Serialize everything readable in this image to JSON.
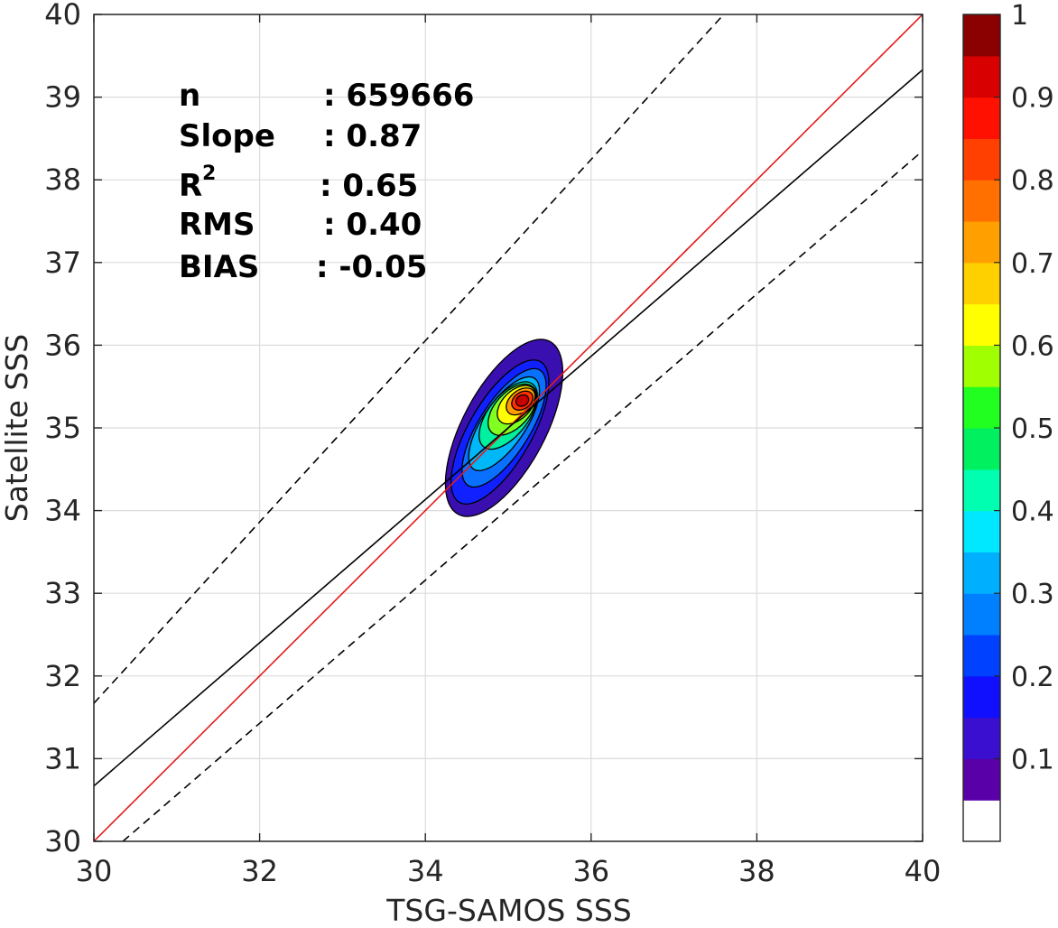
{
  "chart_data": {
    "type": "contour-density-scatter",
    "xlabel": "TSG-SAMOS SSS",
    "ylabel": "Satellite SSS",
    "xlim": [
      30,
      40
    ],
    "ylim": [
      30,
      40
    ],
    "xticks": [
      30,
      32,
      34,
      36,
      38,
      40
    ],
    "yticks": [
      30,
      31,
      32,
      33,
      34,
      35,
      36,
      37,
      38,
      39,
      40
    ],
    "grid": true,
    "stats": [
      {
        "label": "n",
        "value": ": 659666",
        "superscript": ""
      },
      {
        "label": "Slope",
        "value": ": 0.87",
        "superscript": ""
      },
      {
        "label": "R",
        "value": ": 0.65",
        "superscript": "2"
      },
      {
        "label": "RMS",
        "value": ": 0.40",
        "superscript": ""
      },
      {
        "label": "BIAS",
        "value": ": -0.05",
        "superscript": ""
      }
    ],
    "lines": [
      {
        "role": "one-to-one",
        "color": "#e41a1c",
        "style": "solid",
        "points": [
          [
            30,
            30
          ],
          [
            40,
            40
          ]
        ]
      },
      {
        "role": "regression",
        "color": "#000000",
        "style": "solid",
        "points": [
          [
            30,
            30.67
          ],
          [
            40,
            39.33
          ]
        ]
      },
      {
        "role": "upper-bound",
        "color": "#000000",
        "style": "dashed",
        "points": [
          [
            30,
            31.67
          ],
          [
            37.6,
            40
          ]
        ]
      },
      {
        "role": "lower-bound",
        "color": "#000000",
        "style": "dashed",
        "points": [
          [
            30.35,
            30
          ],
          [
            40,
            38.35
          ]
        ]
      }
    ],
    "density_contours": [
      {
        "level": 0.05,
        "color": "#3a0fb0",
        "center": [
          34.95,
          35.0
        ],
        "rx": 1.18,
        "ry": 0.5,
        "angle": 62
      },
      {
        "level": 0.15,
        "color": "#1020ff",
        "center": [
          34.9,
          34.95
        ],
        "rx": 0.98,
        "ry": 0.38,
        "angle": 60
      },
      {
        "level": 0.25,
        "color": "#0a70ff",
        "center": [
          34.95,
          35.0
        ],
        "rx": 0.82,
        "ry": 0.31,
        "angle": 58
      },
      {
        "level": 0.35,
        "color": "#00b8f8",
        "center": [
          34.95,
          35.05
        ],
        "rx": 0.66,
        "ry": 0.26,
        "angle": 56
      },
      {
        "level": 0.45,
        "color": "#00f0a0",
        "center": [
          35.0,
          35.15
        ],
        "rx": 0.48,
        "ry": 0.24,
        "angle": 52
      },
      {
        "level": 0.55,
        "color": "#80ff20",
        "center": [
          35.05,
          35.22
        ],
        "rx": 0.37,
        "ry": 0.21,
        "angle": 48
      },
      {
        "level": 0.65,
        "color": "#ffff00",
        "center": [
          35.1,
          35.28
        ],
        "rx": 0.28,
        "ry": 0.17,
        "angle": 45
      },
      {
        "level": 0.75,
        "color": "#ff9c00",
        "center": [
          35.15,
          35.32
        ],
        "rx": 0.2,
        "ry": 0.13,
        "angle": 40
      },
      {
        "level": 0.85,
        "color": "#ff3000",
        "center": [
          35.17,
          35.33
        ],
        "rx": 0.14,
        "ry": 0.1,
        "angle": 35
      },
      {
        "level": 0.95,
        "color": "#c80000",
        "center": [
          35.17,
          35.33
        ],
        "rx": 0.08,
        "ry": 0.065,
        "angle": 30
      }
    ],
    "colorbar": {
      "min": 0,
      "max": 1,
      "ticks": [
        0.1,
        0.2,
        0.3,
        0.4,
        0.5,
        0.6,
        0.7,
        0.8,
        0.9,
        1
      ],
      "tick_labels": [
        "0.1",
        "0.2",
        "0.3",
        "0.4",
        "0.5",
        "0.6",
        "0.7",
        "0.8",
        "0.9",
        "1"
      ],
      "colors": [
        "#ffffff",
        "#5a00a8",
        "#3a0fd0",
        "#1010ff",
        "#0040ff",
        "#0080ff",
        "#00b0ff",
        "#00e8ff",
        "#00ffb0",
        "#00f060",
        "#20ff20",
        "#a0ff00",
        "#ffff00",
        "#ffd000",
        "#ffa000",
        "#ff7000",
        "#ff4000",
        "#ff1000",
        "#d80000",
        "#8b0000"
      ]
    }
  }
}
